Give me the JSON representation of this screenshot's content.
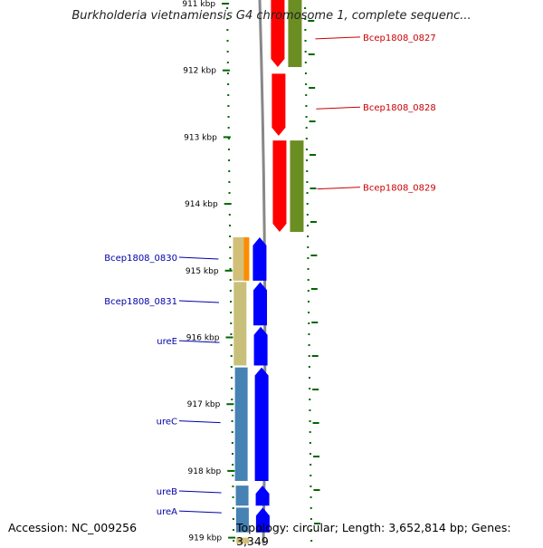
{
  "title": "Burkholderia vietnamiensis G4 chromosome 1, complete sequenc...",
  "footer": {
    "accession": "Accession: NC_009256",
    "summary": "Topology: circular; Length: 3,652,814 bp; Genes: 3,349"
  },
  "colors": {
    "forward_label": "#cc0000",
    "reverse_label": "#0000aa",
    "tick": "#006600",
    "backbone": "#888888"
  },
  "ticks": [
    {
      "label": "911 kbp",
      "kbp": 911
    },
    {
      "label": "912 kbp",
      "kbp": 912
    },
    {
      "label": "913 kbp",
      "kbp": 913
    },
    {
      "label": "914 kbp",
      "kbp": 914
    },
    {
      "label": "915 kbp",
      "kbp": 915
    },
    {
      "label": "916 kbp",
      "kbp": 916
    },
    {
      "label": "917 kbp",
      "kbp": 917
    },
    {
      "label": "918 kbp",
      "kbp": 918
    },
    {
      "label": "919 kbp",
      "kbp": 919
    }
  ],
  "gene_labels_forward": [
    {
      "text": "Bcep1808_0827",
      "kbp": 911.5
    },
    {
      "text": "Bcep1808_0828",
      "kbp": 912.55
    },
    {
      "text": "Bcep1808_0829",
      "kbp": 913.75
    }
  ],
  "gene_labels_reverse": [
    {
      "text": "Bcep1808_0830",
      "kbp": 914.8
    },
    {
      "text": "Bcep1808_0831",
      "kbp": 915.45
    },
    {
      "text": "ureE",
      "kbp": 916.05
    },
    {
      "text": "ureC",
      "kbp": 917.25
    },
    {
      "text": "ureB",
      "kbp": 918.3
    },
    {
      "text": "ureA",
      "kbp": 918.6
    }
  ],
  "features": {
    "forward_genes": [
      {
        "start": 910.9,
        "end": 911.95,
        "color": "#ff0000"
      },
      {
        "start": 912.05,
        "end": 912.98,
        "color": "#ff0000"
      },
      {
        "start": 913.05,
        "end": 914.42,
        "color": "#ff0000"
      }
    ],
    "forward_cds": [
      {
        "start": 910.9,
        "end": 911.95,
        "color": "#6b8e23"
      },
      {
        "start": 913.05,
        "end": 914.42,
        "color": "#6b8e23"
      }
    ],
    "reverse_genes": [
      {
        "start": 914.5,
        "end": 915.15,
        "color": "#0000ff"
      },
      {
        "start": 915.17,
        "end": 915.82,
        "color": "#0000ff"
      },
      {
        "start": 915.84,
        "end": 916.42,
        "color": "#0000ff"
      },
      {
        "start": 916.45,
        "end": 918.15,
        "color": "#0000ff"
      },
      {
        "start": 918.22,
        "end": 918.52,
        "color": "#0000ff"
      },
      {
        "start": 918.55,
        "end": 918.92,
        "color": "#0000ff"
      }
    ],
    "reverse_cds": [
      {
        "start": 914.5,
        "end": 915.15,
        "color": "#d2c07a"
      },
      {
        "start": 915.17,
        "end": 916.42,
        "color": "#c8c07a"
      },
      {
        "start": 916.45,
        "end": 918.15,
        "color": "#4682b4"
      },
      {
        "start": 918.22,
        "end": 918.52,
        "color": "#4682b4"
      },
      {
        "start": 918.55,
        "end": 918.92,
        "color": "#4682b4"
      },
      {
        "start": 919.0,
        "end": 919.2,
        "color": "#d2c07a"
      }
    ],
    "orf_marker": {
      "start": 914.5,
      "end": 915.15,
      "color": "#ff8c00"
    }
  }
}
